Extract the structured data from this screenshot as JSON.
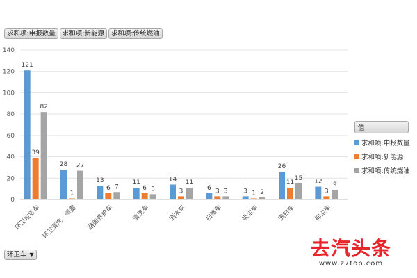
{
  "pivot_buttons": [
    "求和项:申报数量",
    "求和项:新能源",
    "求和项:传统燃油"
  ],
  "filter": {
    "label": "环卫车"
  },
  "legend": {
    "title": "值"
  },
  "watermark": {
    "main": "去汽头条",
    "url": "www.z7top.com"
  },
  "colors": {
    "申报数量": "#5b9bd5",
    "新能源": "#ed7d31",
    "传统燃油": "#a5a5a5"
  },
  "chart_data": {
    "type": "bar",
    "categories": [
      "环卫垃圾车",
      "环卫清洗、喷雾",
      "路面养护车",
      "清洗车",
      "洒水车",
      "扫路车",
      "吸尘车",
      "洗扫车",
      "抑尘车"
    ],
    "series": [
      {
        "name": "求和项:申报数量",
        "values": [
          121,
          28,
          13,
          11,
          14,
          6,
          3,
          26,
          12
        ]
      },
      {
        "name": "求和项:新能源",
        "values": [
          39,
          1,
          6,
          6,
          3,
          3,
          1,
          11,
          3
        ]
      },
      {
        "name": "求和项:传统燃油",
        "values": [
          82,
          27,
          7,
          5,
          11,
          3,
          2,
          15,
          9
        ]
      }
    ],
    "ylim": [
      0,
      140
    ],
    "yticks": [
      0,
      20,
      40,
      60,
      80,
      100,
      120,
      140
    ],
    "grid": true,
    "legend_position": "right"
  }
}
